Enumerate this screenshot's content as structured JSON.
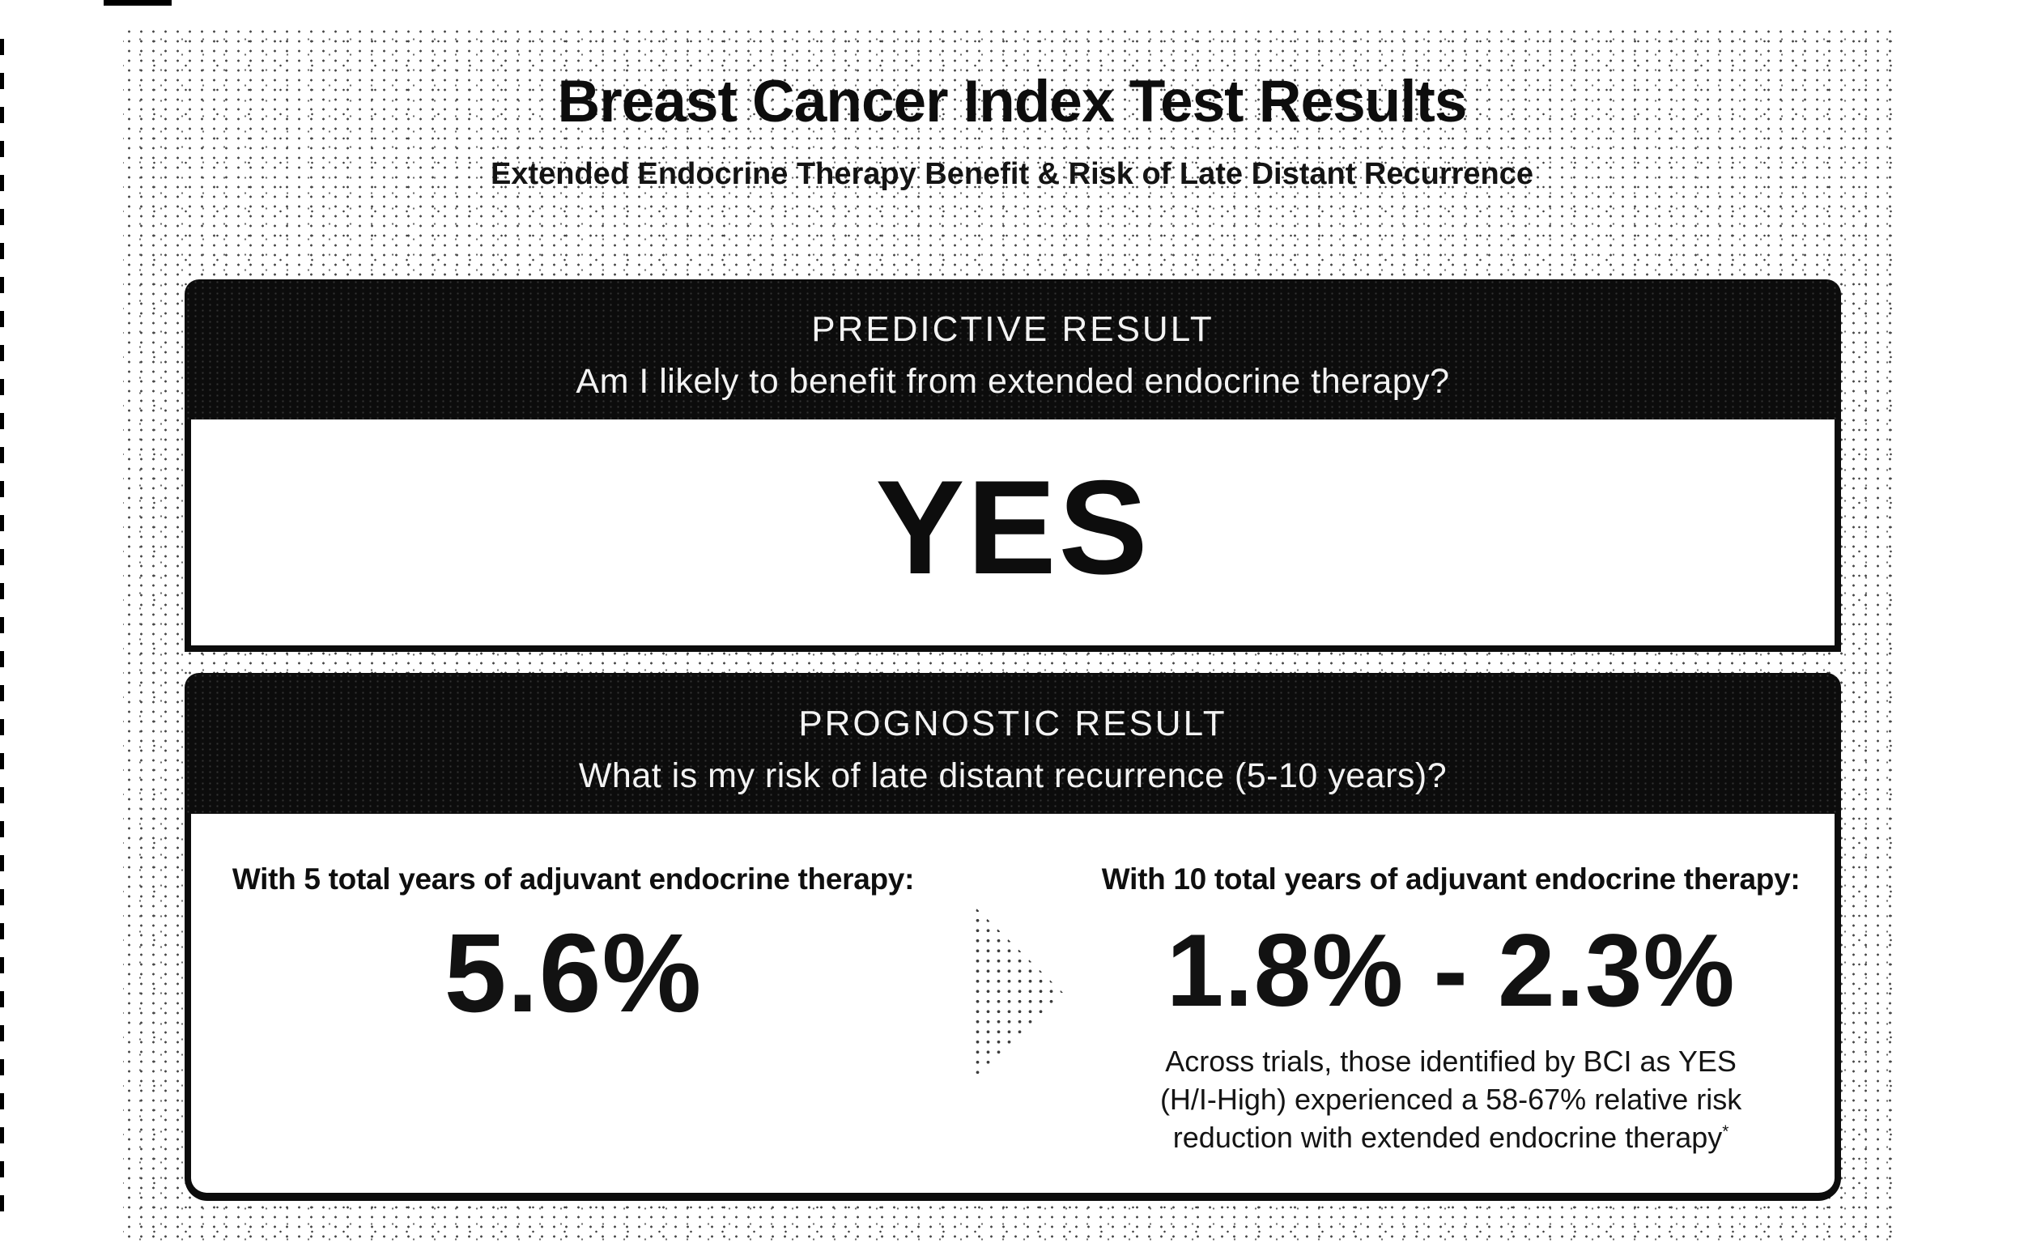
{
  "document": {
    "title": "Breast Cancer Index Test Results",
    "subtitle": "Extended Endocrine Therapy Benefit & Risk of Late Distant Recurrence"
  },
  "predictive_result": {
    "header": "PREDICTIVE RESULT",
    "question": "Am I likely to benefit from extended endocrine therapy?",
    "answer": "YES"
  },
  "prognostic_result": {
    "header": "PROGNOSTIC RESULT",
    "question": "What is my risk of late distant recurrence (5-10 years)?",
    "five_year": {
      "label": "With 5 total years of adjuvant endocrine therapy:",
      "value": "5.6%"
    },
    "ten_year": {
      "label": "With 10 total years of adjuvant endocrine therapy:",
      "value": "1.8% - 2.3%",
      "note_lines": [
        "Across trials, those identified by BCI as YES",
        "(H/I-High) experienced a 58-67% relative risk",
        "reduction with extended endocrine therapy"
      ],
      "note_footnote_marker": "*"
    }
  },
  "icons": {
    "between_columns": "right-arrow-triangle"
  },
  "colors": {
    "page_bg": "#ffffff",
    "card_header_bg": "#0c0c0c",
    "card_border": "#0c0c0c",
    "text": "#111111"
  }
}
